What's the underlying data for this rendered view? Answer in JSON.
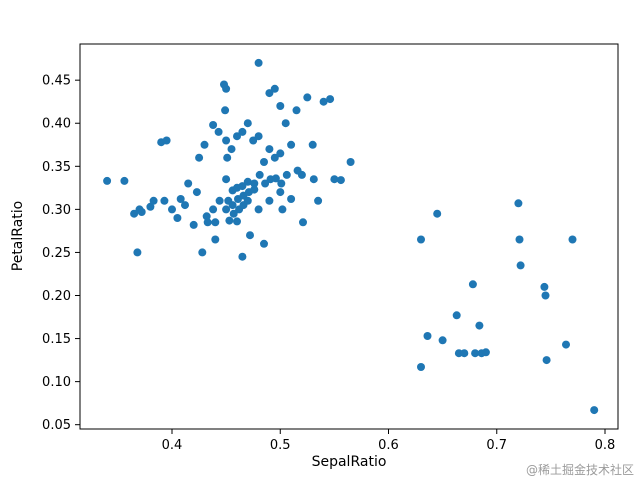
{
  "figure": {
    "background": "#ffffff",
    "spine_color": "#000000"
  },
  "watermark": {
    "text": "@稀土掘金技术社区",
    "color": "#9b9b9b"
  },
  "chart_data": {
    "type": "scatter",
    "title": "",
    "xlabel": "SepalRatio",
    "ylabel": "PetalRatio",
    "marker_color": "#1f77b4",
    "marker_radius_px": 4,
    "xlim": [
      0.315,
      0.812
    ],
    "ylim": [
      0.045,
      0.492
    ],
    "xticks": [
      0.4,
      0.5,
      0.6,
      0.7,
      0.8
    ],
    "xtick_labels": [
      "0.4",
      "0.5",
      "0.6",
      "0.7",
      "0.8"
    ],
    "yticks": [
      0.05,
      0.1,
      0.15,
      0.2,
      0.25,
      0.3,
      0.35,
      0.4,
      0.45
    ],
    "ytick_labels": [
      "0.05",
      "0.10",
      "0.15",
      "0.20",
      "0.25",
      "0.30",
      "0.35",
      "0.40",
      "0.45"
    ],
    "grid": false,
    "legend": "none",
    "points": [
      [
        0.34,
        0.333
      ],
      [
        0.356,
        0.333
      ],
      [
        0.365,
        0.295
      ],
      [
        0.368,
        0.25
      ],
      [
        0.37,
        0.3
      ],
      [
        0.372,
        0.297
      ],
      [
        0.38,
        0.303
      ],
      [
        0.383,
        0.31
      ],
      [
        0.39,
        0.378
      ],
      [
        0.395,
        0.38
      ],
      [
        0.393,
        0.31
      ],
      [
        0.4,
        0.3
      ],
      [
        0.405,
        0.29
      ],
      [
        0.408,
        0.312
      ],
      [
        0.412,
        0.305
      ],
      [
        0.415,
        0.33
      ],
      [
        0.42,
        0.282
      ],
      [
        0.423,
        0.32
      ],
      [
        0.425,
        0.36
      ],
      [
        0.428,
        0.25
      ],
      [
        0.43,
        0.375
      ],
      [
        0.432,
        0.292
      ],
      [
        0.433,
        0.285
      ],
      [
        0.438,
        0.398
      ],
      [
        0.438,
        0.3
      ],
      [
        0.44,
        0.285
      ],
      [
        0.44,
        0.265
      ],
      [
        0.443,
        0.39
      ],
      [
        0.444,
        0.31
      ],
      [
        0.448,
        0.445
      ],
      [
        0.45,
        0.44
      ],
      [
        0.449,
        0.415
      ],
      [
        0.45,
        0.38
      ],
      [
        0.451,
        0.36
      ],
      [
        0.45,
        0.335
      ],
      [
        0.452,
        0.31
      ],
      [
        0.45,
        0.3
      ],
      [
        0.453,
        0.287
      ],
      [
        0.455,
        0.37
      ],
      [
        0.456,
        0.322
      ],
      [
        0.456,
        0.305
      ],
      [
        0.457,
        0.295
      ],
      [
        0.46,
        0.385
      ],
      [
        0.46,
        0.325
      ],
      [
        0.461,
        0.312
      ],
      [
        0.462,
        0.3
      ],
      [
        0.46,
        0.286
      ],
      [
        0.465,
        0.39
      ],
      [
        0.465,
        0.327
      ],
      [
        0.466,
        0.316
      ],
      [
        0.466,
        0.305
      ],
      [
        0.465,
        0.245
      ],
      [
        0.47,
        0.4
      ],
      [
        0.47,
        0.332
      ],
      [
        0.471,
        0.32
      ],
      [
        0.47,
        0.31
      ],
      [
        0.472,
        0.27
      ],
      [
        0.475,
        0.38
      ],
      [
        0.476,
        0.33
      ],
      [
        0.476,
        0.323
      ],
      [
        0.48,
        0.47
      ],
      [
        0.48,
        0.385
      ],
      [
        0.481,
        0.34
      ],
      [
        0.48,
        0.3
      ],
      [
        0.485,
        0.355
      ],
      [
        0.486,
        0.33
      ],
      [
        0.485,
        0.26
      ],
      [
        0.49,
        0.435
      ],
      [
        0.49,
        0.37
      ],
      [
        0.491,
        0.335
      ],
      [
        0.49,
        0.31
      ],
      [
        0.495,
        0.44
      ],
      [
        0.495,
        0.36
      ],
      [
        0.496,
        0.336
      ],
      [
        0.5,
        0.42
      ],
      [
        0.5,
        0.365
      ],
      [
        0.501,
        0.33
      ],
      [
        0.5,
        0.32
      ],
      [
        0.502,
        0.3
      ],
      [
        0.505,
        0.4
      ],
      [
        0.506,
        0.34
      ],
      [
        0.51,
        0.375
      ],
      [
        0.51,
        0.312
      ],
      [
        0.515,
        0.415
      ],
      [
        0.516,
        0.345
      ],
      [
        0.52,
        0.34
      ],
      [
        0.521,
        0.285
      ],
      [
        0.525,
        0.43
      ],
      [
        0.53,
        0.375
      ],
      [
        0.531,
        0.335
      ],
      [
        0.535,
        0.31
      ],
      [
        0.54,
        0.425
      ],
      [
        0.546,
        0.428
      ],
      [
        0.55,
        0.335
      ],
      [
        0.556,
        0.334
      ],
      [
        0.565,
        0.355
      ],
      [
        0.63,
        0.265
      ],
      [
        0.63,
        0.117
      ],
      [
        0.636,
        0.153
      ],
      [
        0.645,
        0.295
      ],
      [
        0.65,
        0.148
      ],
      [
        0.663,
        0.177
      ],
      [
        0.665,
        0.133
      ],
      [
        0.67,
        0.133
      ],
      [
        0.678,
        0.213
      ],
      [
        0.68,
        0.133
      ],
      [
        0.684,
        0.165
      ],
      [
        0.686,
        0.133
      ],
      [
        0.69,
        0.134
      ],
      [
        0.72,
        0.307
      ],
      [
        0.721,
        0.265
      ],
      [
        0.722,
        0.235
      ],
      [
        0.744,
        0.21
      ],
      [
        0.745,
        0.2
      ],
      [
        0.746,
        0.125
      ],
      [
        0.764,
        0.143
      ],
      [
        0.77,
        0.265
      ],
      [
        0.79,
        0.067
      ]
    ]
  }
}
